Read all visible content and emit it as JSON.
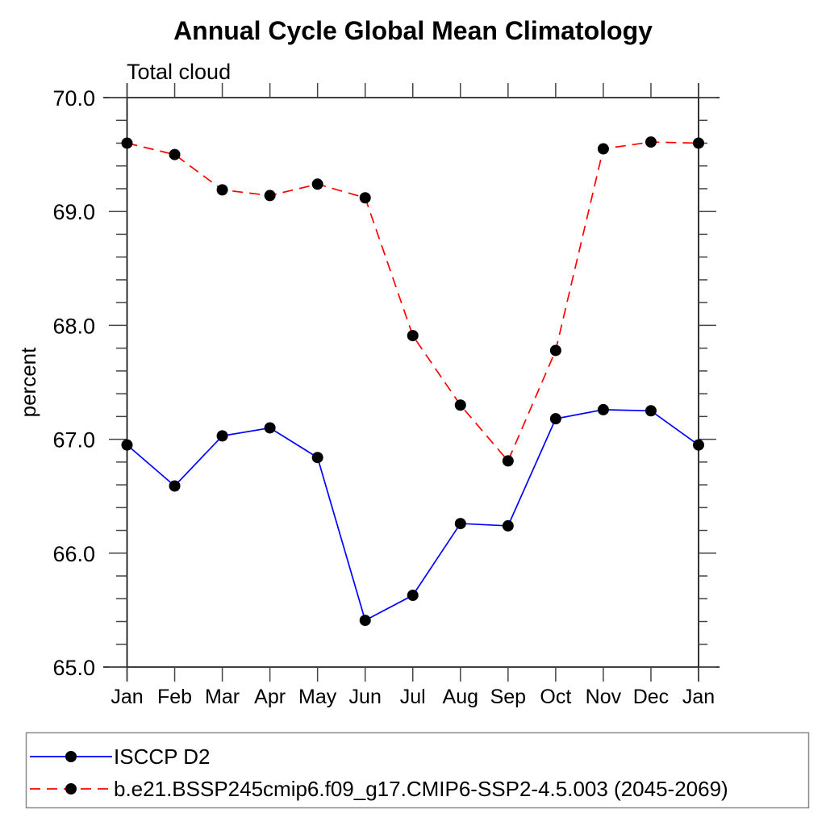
{
  "chart_data": {
    "type": "line",
    "title": "Annual Cycle Global Mean Climatology",
    "subtitle": "Total cloud",
    "xlabel": "",
    "ylabel": "percent",
    "categories": [
      "Jan",
      "Feb",
      "Mar",
      "Apr",
      "May",
      "Jun",
      "Jul",
      "Aug",
      "Sep",
      "Oct",
      "Nov",
      "Dec",
      "Jan"
    ],
    "series": [
      {
        "name": "ISCCP D2",
        "color": "#0000ff",
        "line_style": "solid",
        "marker": "filled-circle",
        "marker_color": "#000000",
        "values": [
          66.95,
          66.59,
          67.03,
          67.1,
          66.84,
          65.41,
          65.63,
          66.26,
          66.24,
          67.18,
          67.26,
          67.25,
          66.95
        ]
      },
      {
        "name": "b.e21.BSSP245cmip6.f09_g17.CMIP6-SSP2-4.5.003 (2045-2069)",
        "color": "#ff0000",
        "line_style": "dashed",
        "marker": "filled-circle",
        "marker_color": "#000000",
        "values": [
          69.6,
          69.5,
          69.19,
          69.14,
          69.24,
          69.12,
          67.91,
          67.3,
          66.81,
          67.78,
          69.55,
          69.61,
          69.6
        ]
      }
    ],
    "ylim": [
      65.0,
      70.0
    ],
    "ytick_labels": [
      "65.0",
      "66.0",
      "67.0",
      "68.0",
      "69.0",
      "70.0"
    ],
    "ytick_major_interval": 1.0,
    "ytick_minor_interval": 0.2,
    "grid": "off",
    "legend_position": "bottom-left-boxed"
  },
  "colors": {
    "background": "#ffffff",
    "axis": "#000000",
    "tick": "#444444",
    "text": "#000000",
    "legend_border": "#8a8a8a"
  }
}
